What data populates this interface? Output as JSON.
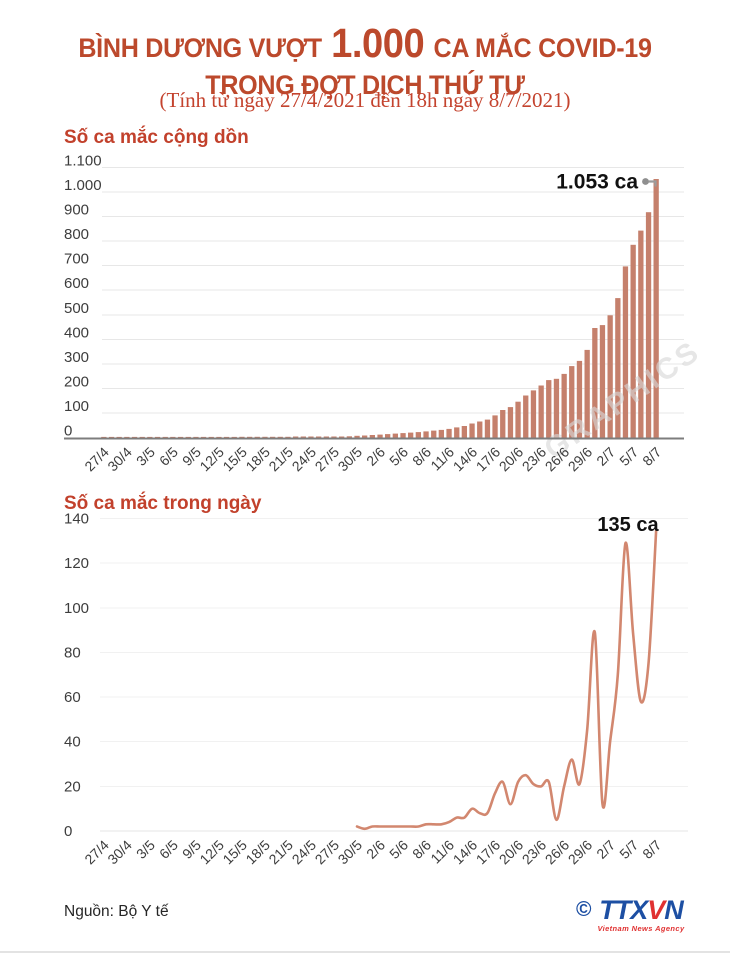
{
  "title": {
    "prefix": "BÌNH DƯƠNG VƯỢT",
    "highlight": "1.000",
    "suffix": "CA MẮC COVID-19",
    "line2": "TRONG ĐỢT DỊCH THỨ TƯ"
  },
  "subtitle": "(Tính từ ngày 27/4/2021 đến 18h ngày 8/7/2021)",
  "source": "Nguồn: Bộ Y tế",
  "watermark": "GRAPHICS",
  "logo": {
    "copyright": "©",
    "blue1": "TTX",
    "red": "V",
    "blue2": "N",
    "caption": "Vietnam News Agency"
  },
  "colors": {
    "title": "#bc492c",
    "subtitle": "#c4432e",
    "section": "#c2412c",
    "bar": "#c5806c",
    "line": "#d2876f",
    "grid": "#e7e7e7",
    "grid_light": "#f1f1f1",
    "axis": "#7d7d7d",
    "tick": "#3d3d3d",
    "annotation": "#111111",
    "connector": "#9b9b9b",
    "connector_dot": "#8f8f8f",
    "watermark": "#d8d8d8",
    "logo_blue": "#1d4fa3",
    "logo_red": "#e03131"
  },
  "chart_data": [
    {
      "type": "bar",
      "title": "Số ca mắc cộng dồn",
      "annotation": "1.053 ca",
      "final_value": 1053,
      "x_tick_every_days": 3,
      "x_tick_labels": [
        "27/4",
        "30/4",
        "3/5",
        "6/5",
        "9/5",
        "12/5",
        "15/5",
        "18/5",
        "21/5",
        "24/5",
        "27/5",
        "30/5",
        "2/6",
        "5/6",
        "8/6",
        "11/6",
        "14/6",
        "17/6",
        "20/6",
        "23/6",
        "26/6",
        "29/6",
        "2/7",
        "5/7",
        "8/7"
      ],
      "y_tick_labels": [
        "1.100",
        "1.000",
        "900",
        "800",
        "700",
        "600",
        "500",
        "400",
        "300",
        "200",
        "100",
        "0"
      ],
      "y_tick_values": [
        1100,
        1000,
        900,
        800,
        700,
        600,
        500,
        400,
        300,
        200,
        100,
        0
      ],
      "ylim": [
        0,
        1100
      ],
      "values": [
        1,
        1,
        1,
        1,
        1,
        1,
        1,
        1,
        1,
        1,
        1,
        2,
        2,
        2,
        2,
        2,
        2,
        2,
        3,
        3,
        3,
        3,
        3,
        3,
        3,
        4,
        4,
        4,
        4,
        4,
        4,
        4,
        5,
        7,
        8,
        10,
        12,
        14,
        16,
        18,
        20,
        22,
        25,
        28,
        31,
        35,
        41,
        47,
        57,
        65,
        73,
        90,
        112,
        124,
        146,
        171,
        192,
        212,
        234,
        239,
        259,
        291,
        312,
        357,
        446,
        458,
        498,
        568,
        697,
        785,
        843,
        918,
        1053
      ]
    },
    {
      "type": "line",
      "title": "Số ca mắc trong ngày",
      "annotation": "135 ca",
      "final_value": 135,
      "x_tick_every_days": 3,
      "x_tick_labels": [
        "27/4",
        "30/4",
        "3/5",
        "6/5",
        "9/5",
        "12/5",
        "15/5",
        "18/5",
        "21/5",
        "24/5",
        "27/5",
        "30/5",
        "2/6",
        "5/6",
        "8/6",
        "11/6",
        "14/6",
        "17/6",
        "20/6",
        "23/6",
        "26/6",
        "29/6",
        "2/7",
        "5/7",
        "8/7"
      ],
      "y_tick_labels": [
        "140",
        "120",
        "100",
        "80",
        "60",
        "40",
        "20",
        "0"
      ],
      "y_tick_values": [
        140,
        120,
        100,
        80,
        60,
        40,
        20,
        0
      ],
      "ylim": [
        0,
        140
      ],
      "line_start_index": 33,
      "values": [
        null,
        null,
        null,
        null,
        null,
        null,
        null,
        null,
        null,
        null,
        null,
        null,
        null,
        null,
        null,
        null,
        null,
        null,
        null,
        null,
        null,
        null,
        null,
        null,
        null,
        null,
        null,
        null,
        null,
        null,
        null,
        null,
        null,
        2,
        1,
        2,
        2,
        2,
        2,
        2,
        2,
        2,
        3,
        3,
        3,
        4,
        6,
        6,
        10,
        8,
        8,
        17,
        22,
        12,
        22,
        25,
        21,
        20,
        22,
        5,
        20,
        32,
        21,
        45,
        89,
        12,
        40,
        70,
        129,
        88,
        58,
        75,
        135
      ]
    }
  ]
}
